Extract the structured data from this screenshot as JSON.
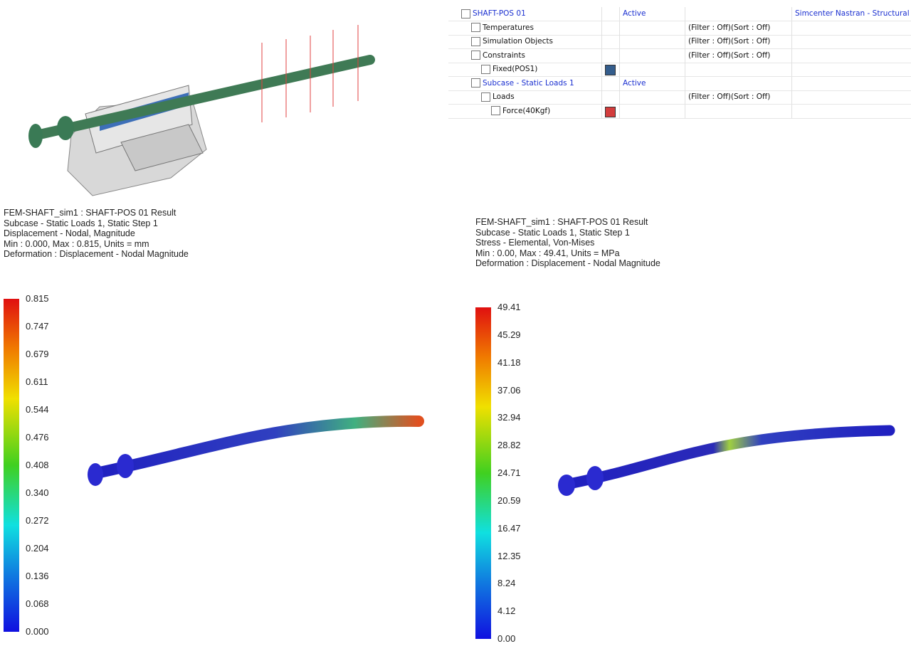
{
  "tree": {
    "rows": [
      {
        "name": "SHAFT-POS 01",
        "status": "Active",
        "solver": "Simcenter Nastran - Structural"
      },
      {
        "name": "Temperatures",
        "filter": "(Filter : Off)(Sort : Off)"
      },
      {
        "name": "Simulation Objects",
        "filter": "(Filter : Off)(Sort : Off)"
      },
      {
        "name": "Constraints",
        "filter": "(Filter : Off)(Sort : Off)"
      },
      {
        "name": "Fixed(POS1)",
        "swatch": "#345d8c"
      },
      {
        "name": "Subcase - Static Loads 1",
        "status": "Active"
      },
      {
        "name": "Loads",
        "filter": "(Filter : Off)(Sort : Off)"
      },
      {
        "name": "Force(40Kgf)",
        "swatch": "#d33c3c"
      }
    ]
  },
  "results": [
    {
      "header": [
        "FEM-SHAFT_sim1 : SHAFT-POS 01 Result",
        "Subcase - Static Loads 1, Static Step 1",
        "Displacement - Nodal, Magnitude",
        "Min : 0.000, Max : 0.815, Units = mm",
        "Deformation : Displacement - Nodal Magnitude"
      ],
      "legend": [
        "0.815",
        "0.747",
        "0.679",
        "0.611",
        "0.544",
        "0.476",
        "0.408",
        "0.340",
        "0.272",
        "0.204",
        "0.136",
        "0.068",
        "0.000"
      ]
    },
    {
      "header": [
        "FEM-SHAFT_sim1 : SHAFT-POS 01 Result",
        "Subcase - Static Loads 1, Static Step 1",
        "Stress - Elemental, Von-Mises",
        "Min : 0.00, Max : 49.41, Units = MPa",
        "Deformation : Displacement - Nodal Magnitude"
      ],
      "legend": [
        "49.41",
        "45.29",
        "41.18",
        "37.06",
        "32.94",
        "28.82",
        "24.71",
        "20.59",
        "16.47",
        "12.35",
        "8.24",
        "4.12",
        "0.00"
      ]
    }
  ]
}
